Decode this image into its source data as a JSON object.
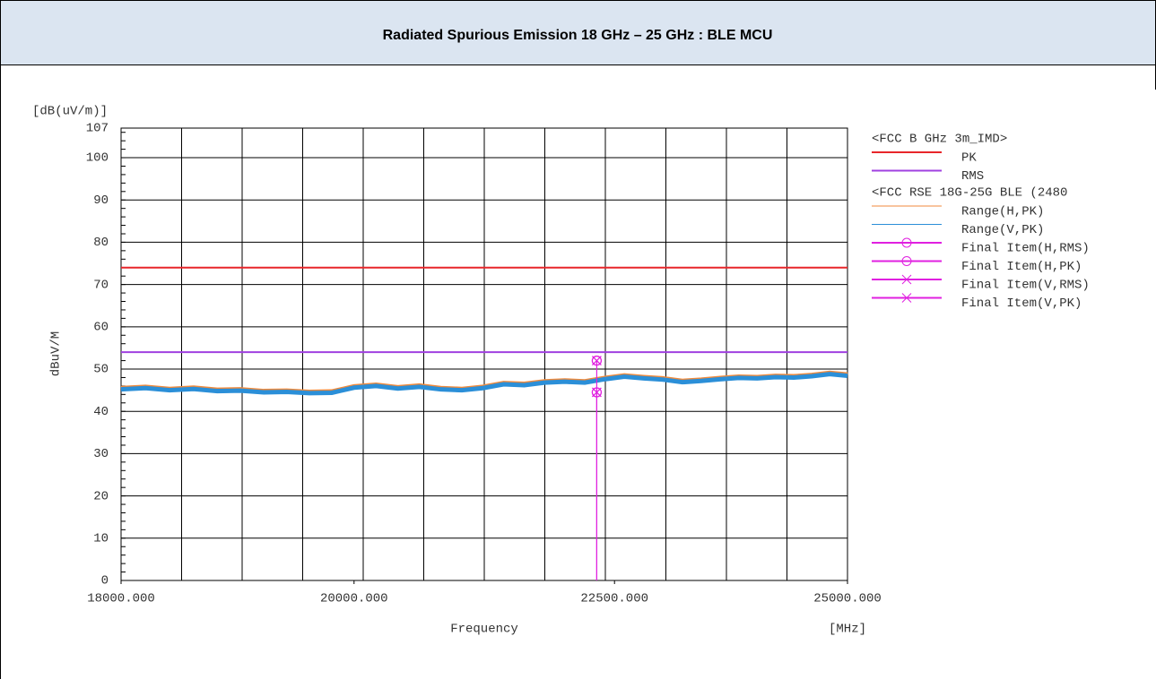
{
  "header": {
    "title": "Radiated Spurious Emission 18 GHz – 25 GHz : BLE MCU"
  },
  "chart_data": {
    "type": "line",
    "y_unit": "[dB(uV/m)]",
    "y_label": "dBuV/M",
    "x_label": "Frequency",
    "x_unit": "[MHz]",
    "xscale": "log",
    "xlim": [
      18000,
      25000
    ],
    "xticks": [
      {
        "value": 18000,
        "label": "18000.000"
      },
      {
        "value": 20000,
        "label": "20000.000"
      },
      {
        "value": 22500,
        "label": "22500.000"
      },
      {
        "value": 25000,
        "label": "25000.000"
      }
    ],
    "ylim": [
      0,
      107
    ],
    "yticks": [
      0,
      10,
      20,
      30,
      40,
      50,
      60,
      70,
      80,
      90,
      100,
      107
    ],
    "grid": true,
    "legend": "right",
    "legend_headings": [
      "<FCC B GHz 3m_IMD>",
      "<FCC RSE 18G-25G BLE (2480"
    ],
    "series": [
      {
        "name": "PK",
        "color": "#e8262a",
        "x": [
          18000,
          25000
        ],
        "values": [
          74,
          74
        ]
      },
      {
        "name": "RMS",
        "color": "#a040e0",
        "x": [
          18000,
          25000
        ],
        "values": [
          54,
          54
        ]
      },
      {
        "name": "Range(H,PK)",
        "color": "#f08a3c",
        "x": [
          18000,
          18200,
          18400,
          18600,
          18800,
          19000,
          19200,
          19400,
          19600,
          19800,
          20000,
          20200,
          20400,
          20600,
          20800,
          21000,
          21200,
          21400,
          21600,
          21800,
          22000,
          22200,
          22400,
          22600,
          22800,
          23000,
          23200,
          23400,
          23600,
          23800,
          24000,
          24200,
          24400,
          24600,
          24800,
          25000
        ],
        "values": [
          45.5,
          45.8,
          45.3,
          45.6,
          45.1,
          45.2,
          44.8,
          44.9,
          44.6,
          44.7,
          45.9,
          46.3,
          45.7,
          46.1,
          45.5,
          45.3,
          45.8,
          46.7,
          46.5,
          47.1,
          47.3,
          47.1,
          47.9,
          48.5,
          48.1,
          47.8,
          47.2,
          47.5,
          47.9,
          48.2,
          48.1,
          48.4,
          48.3,
          48.6,
          49.1,
          48.7
        ]
      },
      {
        "name": "Range(V,PK)",
        "color": "#2b8fd8",
        "x": [
          18000,
          18200,
          18400,
          18600,
          18800,
          19000,
          19200,
          19400,
          19600,
          19800,
          20000,
          20200,
          20400,
          20600,
          20800,
          21000,
          21200,
          21400,
          21600,
          21800,
          22000,
          22200,
          22400,
          22600,
          22800,
          23000,
          23200,
          23400,
          23600,
          23800,
          24000,
          24200,
          24400,
          24600,
          24800,
          25000
        ],
        "values": [
          45.2,
          45.5,
          45.0,
          45.3,
          44.8,
          44.9,
          44.5,
          44.6,
          44.3,
          44.4,
          45.6,
          46.0,
          45.4,
          45.8,
          45.2,
          45.0,
          45.5,
          46.4,
          46.2,
          46.8,
          47.0,
          46.8,
          47.6,
          48.2,
          47.8,
          47.5,
          46.9,
          47.2,
          47.6,
          47.9,
          47.8,
          48.1,
          48.0,
          48.3,
          48.8,
          48.4
        ]
      },
      {
        "name": "Final Item(H,RMS)",
        "color": "#e020e0",
        "marker": "circle",
        "x": [
          22320
        ],
        "values": [
          44.5
        ]
      },
      {
        "name": "Final Item(H,PK)",
        "color": "#e020e0",
        "marker": "circle",
        "x": [
          22320
        ],
        "values": [
          52
        ]
      },
      {
        "name": "Final Item(V,RMS)",
        "color": "#e020e0",
        "marker": "x",
        "x": [
          22320
        ],
        "values": [
          44.5
        ]
      },
      {
        "name": "Final Item(V,PK)",
        "color": "#e020e0",
        "marker": "x",
        "x": [
          22320
        ],
        "values": [
          52
        ]
      }
    ]
  }
}
